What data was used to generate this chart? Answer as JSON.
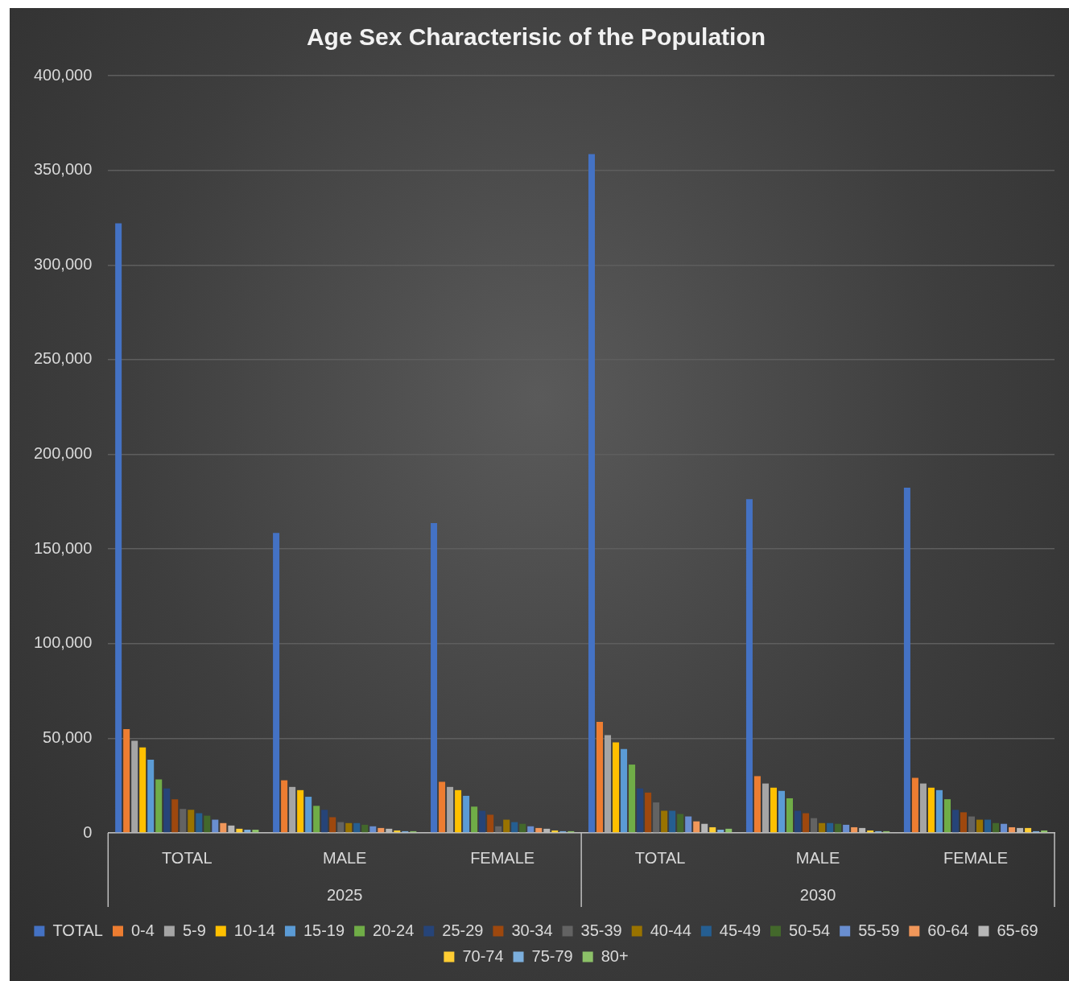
{
  "chart_data": {
    "type": "bar",
    "title": "Age Sex Characterisic of the Population",
    "categories": [
      "TOTAL",
      "MALE",
      "FEMALE",
      "TOTAL",
      "MALE",
      "FEMALE"
    ],
    "annotations": [
      "2025",
      "2030"
    ],
    "ylim": [
      0,
      400000
    ],
    "yticks": [
      {
        "value": 0,
        "label": "0"
      },
      {
        "value": 50000,
        "label": "50,000"
      },
      {
        "value": 100000,
        "label": "100,000"
      },
      {
        "value": 150000,
        "label": "150,000"
      },
      {
        "value": 200000,
        "label": "200,000"
      },
      {
        "value": 250000,
        "label": "250,000"
      },
      {
        "value": 300000,
        "label": "300,000"
      },
      {
        "value": 350000,
        "label": "350,000"
      },
      {
        "value": 400000,
        "label": "400,000"
      }
    ],
    "grid": "y",
    "legend": "bottom",
    "series": [
      {
        "name": "TOTAL",
        "color": "#4472c4",
        "values": [
          322000,
          158400,
          163700,
          358600,
          176300,
          182400
        ]
      },
      {
        "name": "0-4",
        "color": "#ed7d31",
        "values": [
          54800,
          27800,
          27000,
          58700,
          30000,
          29100
        ]
      },
      {
        "name": "5-9",
        "color": "#a5a5a5",
        "values": [
          48700,
          24300,
          24300,
          51700,
          26100,
          26100
        ]
      },
      {
        "name": "10-14",
        "color": "#ffc000",
        "values": [
          45200,
          22600,
          22600,
          47800,
          23900,
          23900
        ]
      },
      {
        "name": "15-19",
        "color": "#5b9bd5",
        "values": [
          38700,
          19100,
          19600,
          44300,
          22200,
          22600
        ]
      },
      {
        "name": "20-24",
        "color": "#70ad47",
        "values": [
          28300,
          14300,
          13900,
          36100,
          18300,
          17800
        ]
      },
      {
        "name": "25-29",
        "color": "#264478",
        "values": [
          23500,
          12200,
          11700,
          23500,
          11700,
          12200
        ]
      },
      {
        "name": "30-34",
        "color": "#9e480e",
        "values": [
          17800,
          8300,
          9600,
          21300,
          10400,
          10900
        ]
      },
      {
        "name": "35-39",
        "color": "#636363",
        "values": [
          12600,
          5700,
          3500,
          16100,
          7800,
          8700
        ]
      },
      {
        "name": "40-44",
        "color": "#997300",
        "values": [
          12200,
          5200,
          7000,
          11700,
          5200,
          7000
        ]
      },
      {
        "name": "45-49",
        "color": "#255e91",
        "values": [
          10400,
          5200,
          5700,
          11700,
          5200,
          7000
        ]
      },
      {
        "name": "50-54",
        "color": "#43682b",
        "values": [
          9100,
          4300,
          4800,
          10000,
          4800,
          5200
        ]
      },
      {
        "name": "55-59",
        "color": "#698ed0",
        "values": [
          7000,
          3500,
          3500,
          8700,
          4300,
          4800
        ]
      },
      {
        "name": "60-64",
        "color": "#f1975a",
        "values": [
          5200,
          2600,
          2600,
          6100,
          3000,
          3000
        ]
      },
      {
        "name": "65-69",
        "color": "#b7b7b7",
        "values": [
          3900,
          2200,
          2200,
          4800,
          2600,
          2600
        ]
      },
      {
        "name": "70-74",
        "color": "#ffcd33",
        "values": [
          2200,
          1300,
          1300,
          3000,
          1300,
          2600
        ]
      },
      {
        "name": "75-79",
        "color": "#7cafdd",
        "values": [
          1700,
          900,
          900,
          1700,
          900,
          900
        ]
      },
      {
        "name": "80+",
        "color": "#8cc168",
        "values": [
          1700,
          900,
          900,
          2200,
          900,
          1300
        ]
      }
    ]
  }
}
